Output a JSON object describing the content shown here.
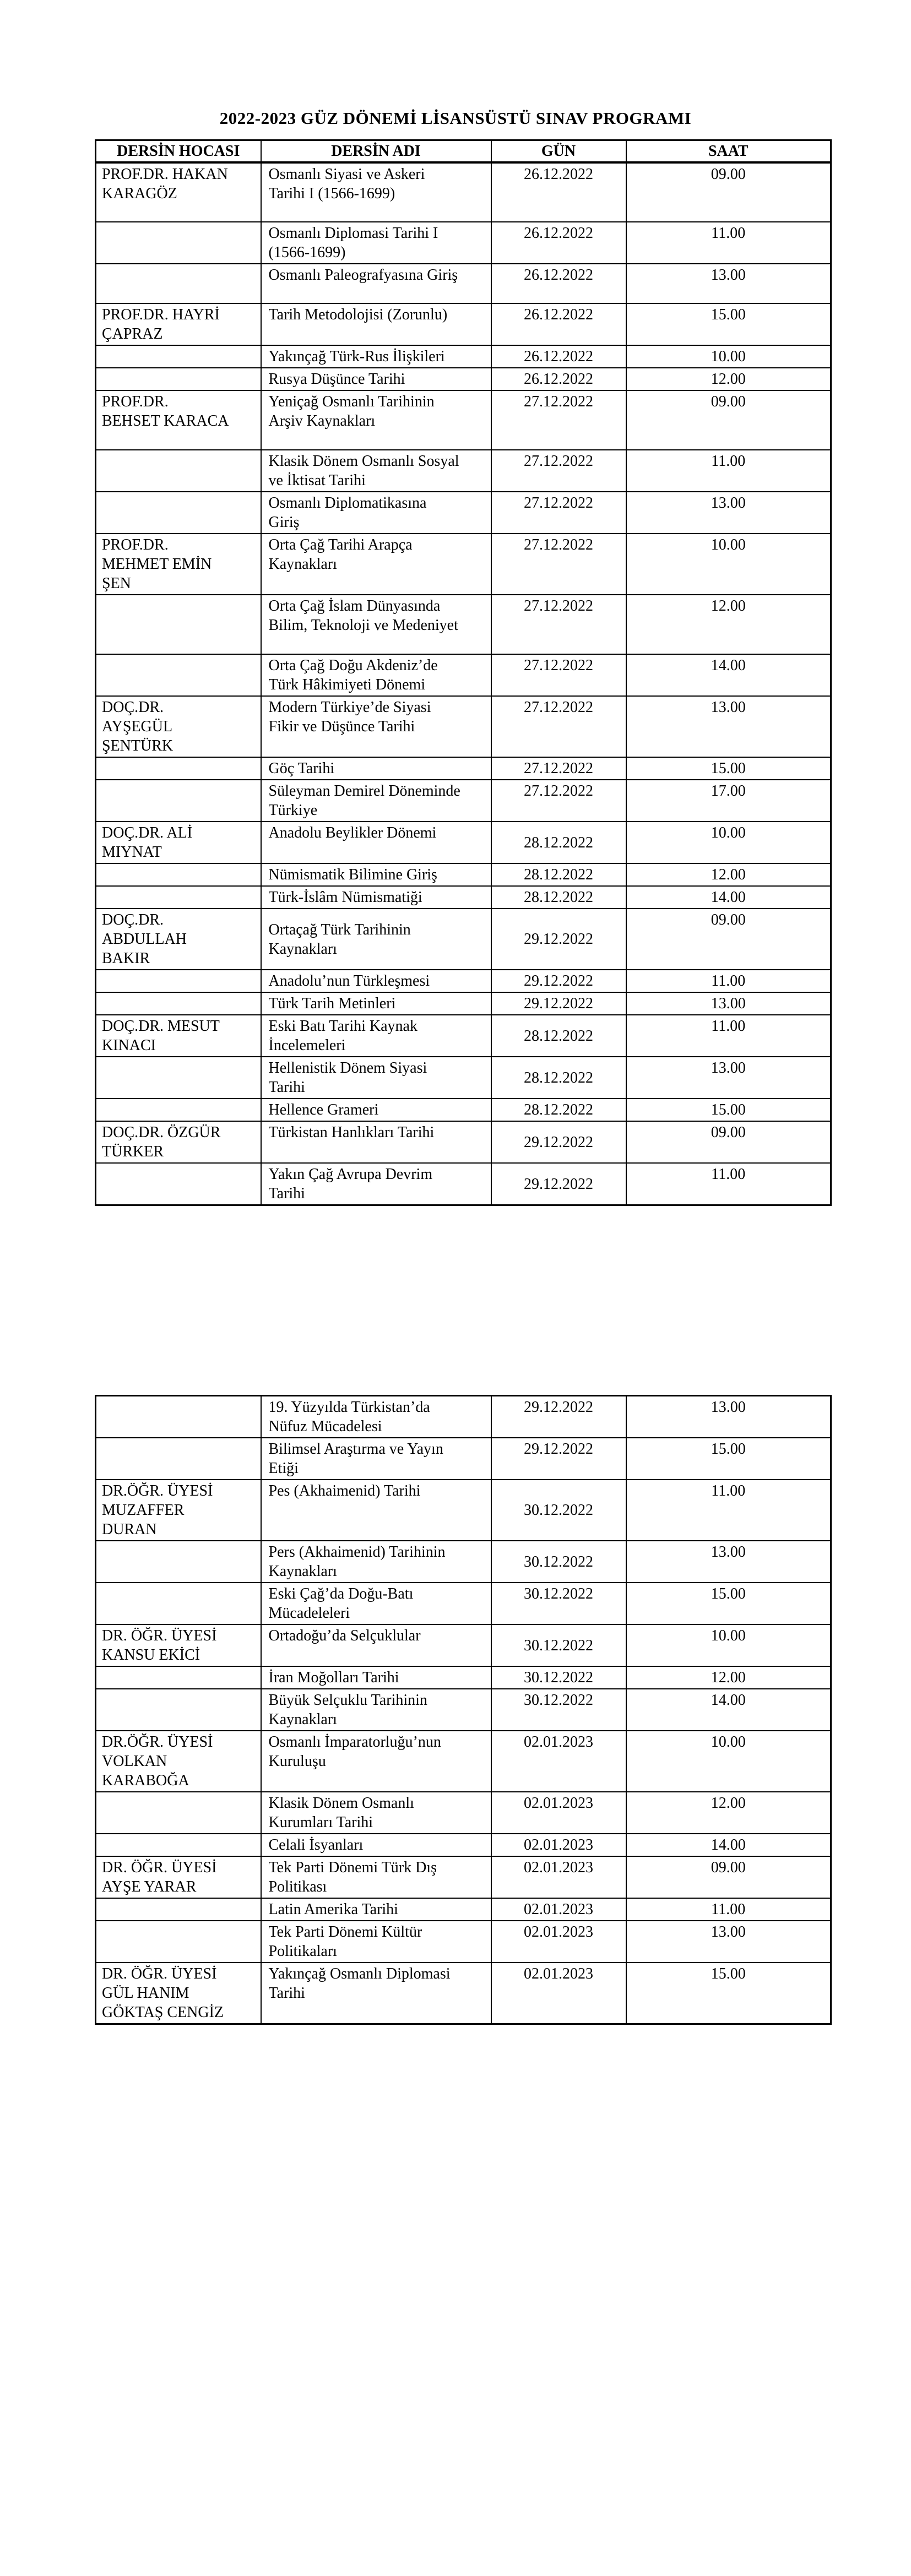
{
  "document": {
    "title": "2022-2023 GÜZ DÖNEMİ LİSANSÜSTÜ SINAV PROGRAMI"
  },
  "colors": {
    "text": "#000000",
    "background": "#ffffff",
    "table_border": "#000000"
  },
  "columns": [
    "DERSİN HOCASI",
    "DERSİN ADI",
    "GÜN",
    "SAAT"
  ],
  "pages": [
    {
      "show_column_headers": true,
      "rows": [
        {
          "instructor": [
            "PROF.DR. HAKAN",
            "KARAGÖZ"
          ],
          "course": [
            "Osmanlı Siyasi ve Askeri",
            "Tarihi I (1566-1699)"
          ],
          "date": "26.12.2022",
          "time": "09.00",
          "height_lines": 3
        },
        {
          "instructor": [],
          "course": [
            "Osmanlı Diplomasi Tarihi I",
            "(1566-1699)"
          ],
          "date": "26.12.2022",
          "time": "11.00",
          "height_lines": 2
        },
        {
          "instructor": [],
          "course": [
            "Osmanlı Paleografyasına Giriş"
          ],
          "date": "26.12.2022",
          "time": "13.00",
          "height_lines": 2
        },
        {
          "instructor": [
            "PROF.DR. HAYRİ",
            "ÇAPRAZ"
          ],
          "course": [
            "Tarih Metodolojisi (Zorunlu)"
          ],
          "date": "26.12.2022",
          "time": "15.00",
          "height_lines": 2
        },
        {
          "instructor": [],
          "course": [
            "Yakınçağ Türk-Rus İlişkileri"
          ],
          "date": "26.12.2022",
          "time": "10.00",
          "height_lines": 1
        },
        {
          "instructor": [],
          "course": [
            "Rusya Düşünce Tarihi"
          ],
          "date": "26.12.2022",
          "time": "12.00",
          "height_lines": 1
        },
        {
          "instructor": [
            "PROF.DR.",
            "BEHSET KARACA"
          ],
          "course": [
            "Yeniçağ Osmanlı Tarihinin",
            "Arşiv Kaynakları"
          ],
          "date": "27.12.2022",
          "time": "09.00",
          "height_lines": 3
        },
        {
          "instructor": [],
          "course": [
            "Klasik Dönem Osmanlı Sosyal",
            "ve İktisat Tarihi"
          ],
          "date": "27.12.2022",
          "time": "11.00",
          "height_lines": 2
        },
        {
          "instructor": [],
          "course": [
            "Osmanlı Diplomatikasına",
            "Giriş"
          ],
          "date": "27.12.2022",
          "time": "13.00",
          "height_lines": 2
        },
        {
          "instructor": [
            "PROF.DR.",
            "MEHMET EMİN",
            "ŞEN"
          ],
          "course": [
            "Orta Çağ Tarihi Arapça",
            "Kaynakları"
          ],
          "date": "27.12.2022",
          "time": "10.00",
          "height_lines": 3
        },
        {
          "instructor": [],
          "course": [
            "Orta Çağ İslam Dünyasında",
            "Bilim, Teknoloji ve Medeniyet"
          ],
          "date": "27.12.2022",
          "time": "12.00",
          "height_lines": 3
        },
        {
          "instructor": [],
          "course": [
            "Orta Çağ Doğu Akdeniz’de",
            "Türk Hâkimiyeti Dönemi"
          ],
          "date": "27.12.2022",
          "time": "14.00",
          "height_lines": 2
        },
        {
          "instructor": [
            "DOÇ.DR.",
            "AYŞEGÜL",
            "ŞENTÜRK"
          ],
          "course": [
            "Modern Türkiye’de Siyasi",
            "Fikir ve Düşünce Tarihi"
          ],
          "date": "27.12.2022",
          "time": "13.00",
          "height_lines": 3
        },
        {
          "instructor": [],
          "course": [
            "Göç Tarihi"
          ],
          "date": "27.12.2022",
          "time": "15.00",
          "height_lines": 1
        },
        {
          "instructor": [],
          "course": [
            "Süleyman Demirel Döneminde",
            "Türkiye"
          ],
          "date": "27.12.2022",
          "time": "17.00",
          "height_lines": 2
        },
        {
          "instructor": [
            "DOÇ.DR. ALİ",
            "MIYNAT"
          ],
          "course": [
            "Anadolu Beylikler Dönemi"
          ],
          "date": "28.12.2022",
          "time": "10.00",
          "height_lines": 2,
          "date_valign": "middle"
        },
        {
          "instructor": [],
          "course": [
            "Nümismatik Bilimine Giriş"
          ],
          "date": "28.12.2022",
          "time": "12.00",
          "height_lines": 1
        },
        {
          "instructor": [],
          "course": [
            "Türk-İslâm Nümismatiği"
          ],
          "date": "28.12.2022",
          "time": "14.00",
          "height_lines": 1
        },
        {
          "instructor": [
            "DOÇ.DR.",
            "ABDULLAH",
            "BAKIR"
          ],
          "course": [
            "Ortaçağ Türk Tarihinin",
            "Kaynakları"
          ],
          "date": "29.12.2022",
          "time": "09.00",
          "height_lines": 3,
          "date_valign": "middle",
          "course_valign": "middle"
        },
        {
          "instructor": [],
          "course": [
            "Anadolu’nun Türkleşmesi"
          ],
          "date": "29.12.2022",
          "time": "11.00",
          "height_lines": 1
        },
        {
          "instructor": [],
          "course": [
            "Türk Tarih Metinleri"
          ],
          "date": "29.12.2022",
          "time": "13.00",
          "height_lines": 1
        },
        {
          "instructor": [
            "DOÇ.DR. MESUT",
            "KINACI"
          ],
          "course": [
            "Eski Batı Tarihi Kaynak",
            "İncelemeleri"
          ],
          "date": "28.12.2022",
          "time": "11.00",
          "height_lines": 2,
          "date_valign": "middle"
        },
        {
          "instructor": [],
          "course": [
            "Hellenistik Dönem Siyasi",
            "Tarihi"
          ],
          "date": "28.12.2022",
          "time": "13.00",
          "height_lines": 2,
          "date_valign": "middle"
        },
        {
          "instructor": [],
          "course": [
            "Hellence Grameri"
          ],
          "date": "28.12.2022",
          "time": "15.00",
          "height_lines": 1
        },
        {
          "instructor": [
            "DOÇ.DR. ÖZGÜR",
            "TÜRKER"
          ],
          "course": [
            "Türkistan Hanlıkları Tarihi"
          ],
          "date": "29.12.2022",
          "time": "09.00",
          "height_lines": 2,
          "date_valign": "middle"
        },
        {
          "instructor": [],
          "course": [
            "Yakın Çağ Avrupa Devrim",
            "Tarihi"
          ],
          "date": "29.12.2022",
          "time": "11.00",
          "height_lines": 2,
          "date_valign": "middle"
        }
      ]
    },
    {
      "show_column_headers": false,
      "rows": [
        {
          "instructor": [],
          "course": [
            "19. Yüzyılda Türkistan’da",
            "Nüfuz Mücadelesi"
          ],
          "date": "29.12.2022",
          "time": "13.00",
          "height_lines": 2
        },
        {
          "instructor": [],
          "course": [
            "Bilimsel Araştırma ve Yayın",
            "Etiği"
          ],
          "date": "29.12.2022",
          "time": "15.00",
          "height_lines": 2
        },
        {
          "instructor": [
            "DR.ÖĞR. ÜYESİ",
            "MUZAFFER",
            "DURAN"
          ],
          "course": [
            "Pes (Akhaimenid) Tarihi"
          ],
          "date": "30.12.2022",
          "time": "11.00",
          "height_lines": 3,
          "date_valign": "middle"
        },
        {
          "instructor": [],
          "course": [
            "Pers (Akhaimenid) Tarihinin",
            "Kaynakları"
          ],
          "date": "30.12.2022",
          "time": "13.00",
          "height_lines": 2,
          "date_valign": "middle"
        },
        {
          "instructor": [],
          "course": [
            "Eski Çağ’da Doğu-Batı",
            "Mücadeleleri"
          ],
          "date": "30.12.2022",
          "time": "15.00",
          "height_lines": 2
        },
        {
          "instructor": [
            "DR. ÖĞR. ÜYESİ",
            "KANSU EKİCİ"
          ],
          "course": [
            "Ortadoğu’da Selçuklular"
          ],
          "date": "30.12.2022",
          "time": "10.00",
          "height_lines": 2,
          "date_valign": "middle"
        },
        {
          "instructor": [],
          "course": [
            "İran Moğolları Tarihi"
          ],
          "date": "30.12.2022",
          "time": "12.00",
          "height_lines": 1
        },
        {
          "instructor": [],
          "course": [
            "Büyük Selçuklu Tarihinin",
            "Kaynakları"
          ],
          "date": "30.12.2022",
          "time": "14.00",
          "height_lines": 2
        },
        {
          "instructor": [
            "DR.ÖĞR. ÜYESİ",
            "VOLKAN",
            "KARABOĞA"
          ],
          "course": [
            "Osmanlı İmparatorluğu’nun",
            "Kuruluşu"
          ],
          "date": "02.01.2023",
          "time": "10.00",
          "height_lines": 3
        },
        {
          "instructor": [],
          "course": [
            "Klasik Dönem Osmanlı",
            "Kurumları Tarihi"
          ],
          "date": "02.01.2023",
          "time": "12.00",
          "height_lines": 2
        },
        {
          "instructor": [],
          "course": [
            "Celali İsyanları"
          ],
          "date": "02.01.2023",
          "time": "14.00",
          "height_lines": 1
        },
        {
          "instructor": [
            "DR. ÖĞR. ÜYESİ",
            "AYŞE YARAR"
          ],
          "course": [
            "Tek Parti Dönemi Türk Dış",
            "Politikası"
          ],
          "date": "02.01.2023",
          "time": "09.00",
          "height_lines": 2
        },
        {
          "instructor": [],
          "course": [
            "Latin Amerika Tarihi"
          ],
          "date": "02.01.2023",
          "time": "11.00",
          "height_lines": 1
        },
        {
          "instructor": [],
          "course": [
            "Tek Parti Dönemi Kültür",
            "Politikaları"
          ],
          "date": "02.01.2023",
          "time": "13.00",
          "height_lines": 2
        },
        {
          "instructor": [
            "DR. ÖĞR. ÜYESİ",
            "GÜL HANIM",
            "GÖKTAŞ CENGİZ"
          ],
          "course": [
            "Yakınçağ Osmanlı Diplomasi",
            "Tarihi"
          ],
          "date": "02.01.2023",
          "time": "15.00",
          "height_lines": 3
        }
      ]
    }
  ]
}
